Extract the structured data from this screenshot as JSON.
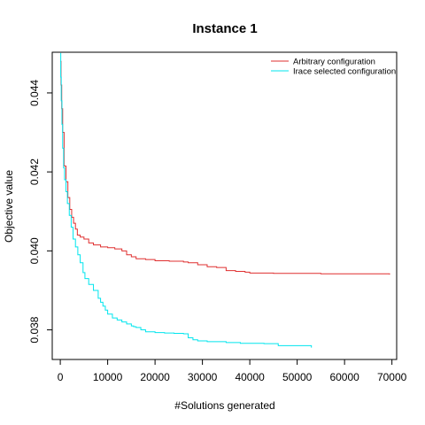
{
  "chart_data": {
    "type": "line",
    "title": "Instance 1",
    "xlabel": "#Solutions generated",
    "ylabel": "Objective value",
    "xlim": [
      -1700,
      71000
    ],
    "ylim": [
      0.03725,
      0.04503
    ],
    "xticks": [
      0,
      10000,
      20000,
      30000,
      40000,
      50000,
      60000,
      70000
    ],
    "xtick_labels": [
      "0",
      "10000",
      "20000",
      "30000",
      "40000",
      "50000",
      "60000",
      "70000"
    ],
    "yticks": [
      0.038,
      0.04,
      0.042,
      0.044
    ],
    "ytick_labels": [
      "0.038",
      "0.040",
      "0.042",
      "0.044"
    ],
    "grid": false,
    "legend_position": "top-right",
    "series": [
      {
        "name": "Arbitrary configuration",
        "color": "#df2f2f",
        "x": [
          0,
          150,
          300,
          500,
          800,
          1200,
          1600,
          2000,
          2400,
          2800,
          3200,
          3600,
          4200,
          5000,
          6000,
          7000,
          8500,
          10000,
          11500,
          13000,
          14000,
          15000,
          16000,
          18000,
          20000,
          23000,
          26000,
          27000,
          29000,
          31000,
          33000,
          35000,
          37000,
          39000,
          40000,
          45000,
          50000,
          55000,
          60000,
          65000,
          69000,
          69500
        ],
        "y": [
          0.0448,
          0.0442,
          0.0436,
          0.043,
          0.04215,
          0.04175,
          0.04135,
          0.04105,
          0.04085,
          0.0407,
          0.04055,
          0.0404,
          0.04035,
          0.0403,
          0.0402,
          0.04015,
          0.0401,
          0.04008,
          0.04005,
          0.04,
          0.0399,
          0.03985,
          0.0398,
          0.03978,
          0.03975,
          0.03974,
          0.03972,
          0.0397,
          0.03965,
          0.0396,
          0.03958,
          0.0395,
          0.03948,
          0.03946,
          0.03944,
          0.03943,
          0.03943,
          0.03942,
          0.03942,
          0.03942,
          0.03942,
          0.0394
        ]
      },
      {
        "name": "Irace selected configuration",
        "color": "#00e5ee",
        "x": [
          0,
          100,
          200,
          350,
          500,
          700,
          900,
          1200,
          1500,
          1900,
          2300,
          2700,
          3200,
          3700,
          4200,
          4800,
          5200,
          6000,
          7000,
          8000,
          8500,
          9000,
          9500,
          10000,
          11000,
          12000,
          13000,
          14000,
          15000,
          15500,
          16000,
          17000,
          18000,
          20000,
          22000,
          24000,
          26000,
          27000,
          28000,
          29000,
          31000,
          33000,
          35000,
          38000,
          41000,
          43000,
          45000,
          46000,
          48000,
          50000,
          52000,
          52500,
          53000
        ],
        "y": [
          0.045,
          0.0444,
          0.0438,
          0.0432,
          0.0426,
          0.0421,
          0.0418,
          0.0415,
          0.0412,
          0.0409,
          0.0406,
          0.0403,
          0.0401,
          0.0399,
          0.0397,
          0.03945,
          0.0393,
          0.03915,
          0.039,
          0.0388,
          0.0387,
          0.0386,
          0.0385,
          0.0384,
          0.0383,
          0.03825,
          0.0382,
          0.03815,
          0.0381,
          0.03808,
          0.03806,
          0.038,
          0.03795,
          0.03793,
          0.03792,
          0.03791,
          0.0379,
          0.0378,
          0.03775,
          0.03772,
          0.0377,
          0.0377,
          0.03768,
          0.03766,
          0.03766,
          0.03765,
          0.03765,
          0.0376,
          0.0376,
          0.0376,
          0.0376,
          0.0376,
          0.03755
        ]
      }
    ]
  }
}
